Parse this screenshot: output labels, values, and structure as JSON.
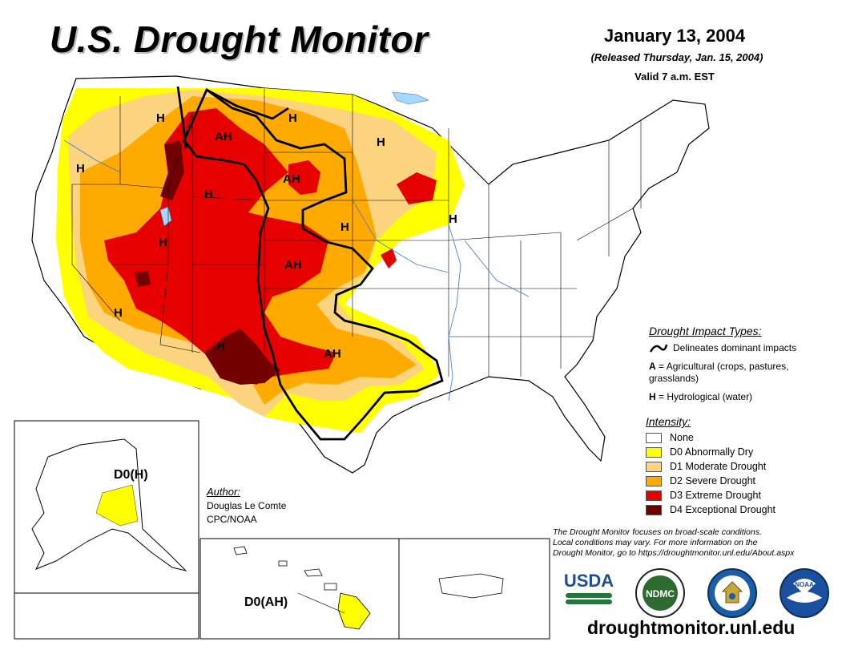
{
  "header": {
    "title": "U.S. Drought Monitor",
    "date": "January 13, 2004",
    "released": "(Released Thursday, Jan. 15, 2004)",
    "valid": "Valid 7 a.m. EST"
  },
  "map_labels": {
    "conus": [
      "H",
      "H",
      "H",
      "AH",
      "H",
      "AH",
      "H",
      "H",
      "H",
      "H",
      "AH",
      "H",
      "H",
      "AH"
    ],
    "alaska": "D0(H)",
    "hawaii": "D0(AH)"
  },
  "impact_legend": {
    "title": "Drought Impact Types:",
    "line_desc": "Delineates dominant impacts",
    "a_key": "A",
    "a_desc": "= Agricultural (crops, pastures, grasslands)",
    "h_key": "H",
    "h_desc": "= Hydrological (water)"
  },
  "intensity_legend": {
    "title": "Intensity:",
    "items": [
      {
        "label": "None",
        "color": "#ffffff"
      },
      {
        "label": "D0 Abnormally Dry",
        "color": "#ffff00"
      },
      {
        "label": "D1 Moderate Drought",
        "color": "#fcd37f"
      },
      {
        "label": "D2 Severe Drought",
        "color": "#ffaa00"
      },
      {
        "label": "D3 Extreme Drought",
        "color": "#e60000"
      },
      {
        "label": "D4 Exceptional Drought",
        "color": "#730000"
      }
    ]
  },
  "author": {
    "heading": "Author:",
    "name": "Douglas Le Comte",
    "org": "CPC/NOAA"
  },
  "note": {
    "line1": "The Drought Monitor focuses on broad-scale conditions.",
    "line2": "Local conditions may vary. For more information on the",
    "line3": "Drought Monitor, go to https://droughtmonitor.unl.edu/About.aspx"
  },
  "logos": {
    "usda": "USDA",
    "ndmc": "NDMC",
    "noaa": "NOAA"
  },
  "url": "droughtmonitor.unl.edu"
}
